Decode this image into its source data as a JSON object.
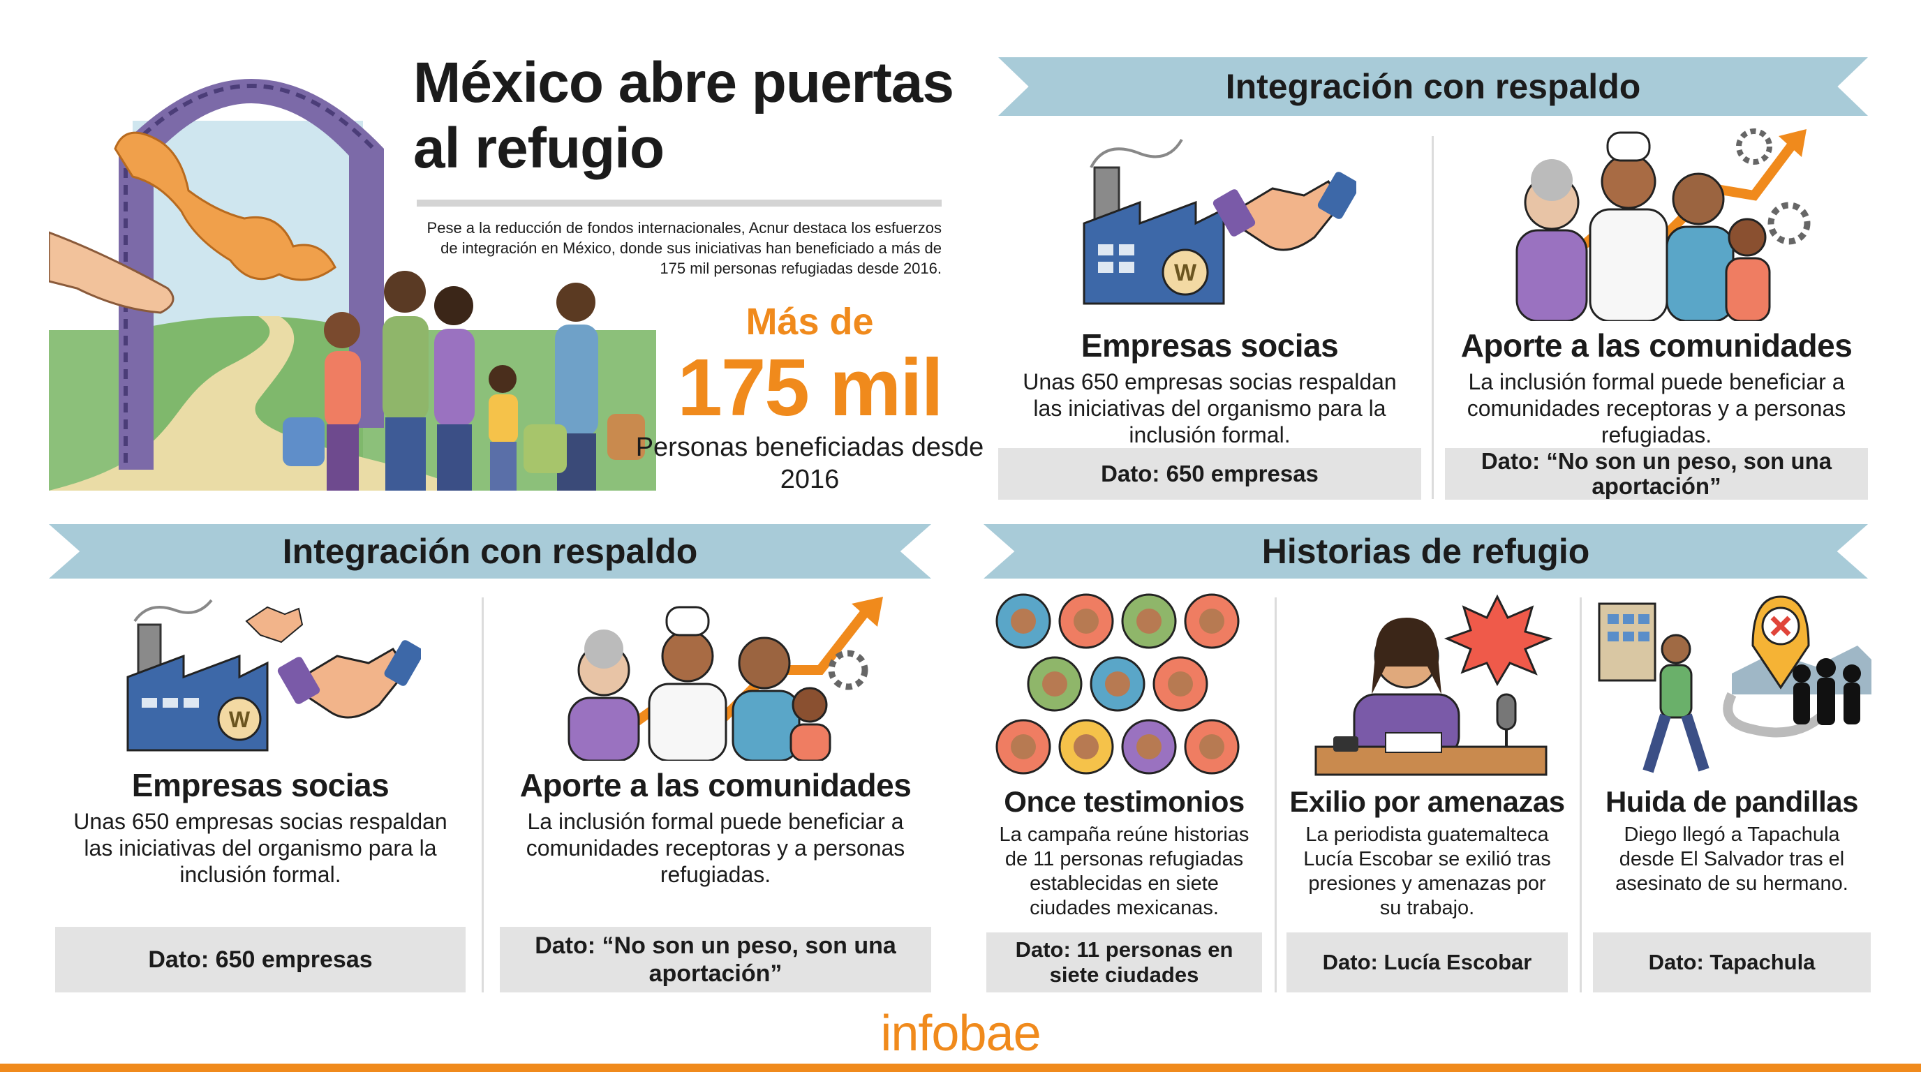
{
  "header": {
    "title": "México abre puertas al refugio",
    "intro": "Pese a la reducción de fondos internacionales, Acnur destaca los esfuerzos de integración en México, donde sus iniciativas han beneficiado a más de 175 mil personas refugiadas desde 2016."
  },
  "highlight": {
    "prefix": "Más de",
    "figure": "175 mil",
    "caption": "Personas beneficiadas desde 2016"
  },
  "sections": [
    {
      "title": "Integración con respaldo",
      "cards": [
        {
          "title": "Empresas socias",
          "text": "Unas 650 empresas socias respaldan las iniciativas del organismo para la inclusión formal.",
          "fact": "Dato: 650 empresas"
        },
        {
          "title": "Aporte a las comunidades",
          "text": "La inclusión formal puede beneficiar a comunidades receptoras y a personas refugiadas.",
          "fact": "Dato: “No son un peso, son una aportación”"
        }
      ]
    },
    {
      "title": "Integración con respaldo",
      "cards": [
        {
          "title": "Empresas socias",
          "text": "Unas 650 empresas socias respaldan las iniciativas del organismo para la inclusión formal.",
          "fact": "Dato: 650 empresas"
        },
        {
          "title": "Aporte a las comunidades",
          "text": "La inclusión formal puede beneficiar a comunidades receptoras y a personas refugiadas.",
          "fact": "Dato: “No son un peso, son una aportación”"
        }
      ]
    },
    {
      "title": "Historias de refugio",
      "cards": [
        {
          "title": "Once testimonios",
          "text": "La campaña reúne historias de 11 personas refugiadas establecidas en siete ciudades mexicanas.",
          "fact": "Dato: 11 personas en siete ciudades"
        },
        {
          "title": "Exilio por amenazas",
          "text": "La periodista guatemalteca Lucía Escobar se exilió tras presiones y amenazas por su trabajo.",
          "fact": "Dato: Lucía Escobar"
        },
        {
          "title": "Huida de pandillas",
          "text": "Diego llegó a Tapachula desde El Salvador tras el asesinato de su hermano.",
          "fact": "Dato: Tapachula"
        }
      ]
    }
  ],
  "footer": {
    "brand": "infobae"
  }
}
